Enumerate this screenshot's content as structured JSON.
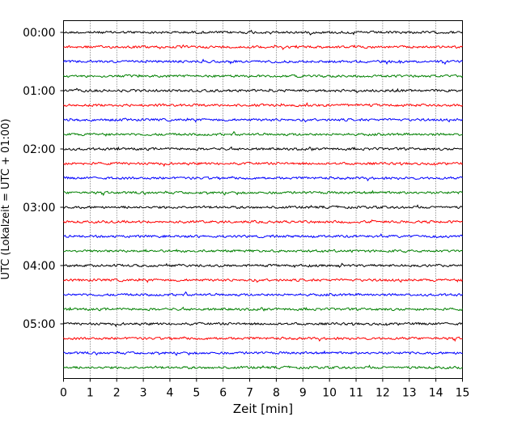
{
  "chart_data": {
    "type": "line",
    "title": "",
    "xlabel": "Zeit  [min]",
    "ylabel": "UTC (Lokalzeit = UTC + 01:00)",
    "xlim": [
      0,
      15
    ],
    "x_ticks": [
      0,
      1,
      2,
      3,
      4,
      5,
      6,
      7,
      8,
      9,
      10,
      11,
      12,
      13,
      14,
      15
    ],
    "x_tick_labels": [
      "0",
      "1",
      "2",
      "3",
      "4",
      "5",
      "6",
      "7",
      "8",
      "9",
      "10",
      "11",
      "12",
      "13",
      "14",
      "15"
    ],
    "y_tick_labels": [
      "00:00",
      "01:00",
      "02:00",
      "03:00",
      "04:00",
      "05:00"
    ],
    "trace_interval_min": 15,
    "trace_colors": [
      "#000000",
      "#ff0000",
      "#0000ff",
      "#008000"
    ],
    "trace_start_times": [
      "00:00",
      "00:15",
      "00:30",
      "00:45",
      "01:00",
      "01:15",
      "01:30",
      "01:45",
      "02:00",
      "02:15",
      "02:30",
      "02:45",
      "03:00",
      "03:15",
      "03:30",
      "03:45",
      "04:00",
      "04:15",
      "04:30",
      "04:45",
      "05:00",
      "05:15",
      "05:30",
      "05:45"
    ],
    "vertical_grid": "dotted",
    "legend": "none"
  }
}
